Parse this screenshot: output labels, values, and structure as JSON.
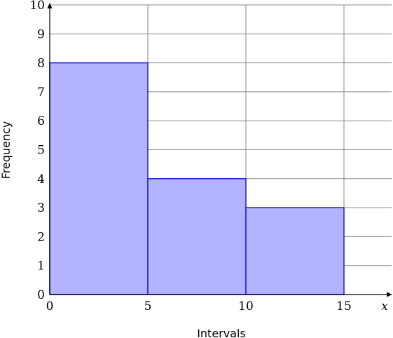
{
  "chart_data": {
    "type": "bar",
    "bins": [
      {
        "start": 0,
        "end": 5,
        "value": 8
      },
      {
        "start": 5,
        "end": 10,
        "value": 4
      },
      {
        "start": 10,
        "end": 15,
        "value": 3
      }
    ],
    "xlabel": "Intervals",
    "ylabel": "Frequency",
    "x_axis_var": "x",
    "xlim": [
      0,
      17.5
    ],
    "ylim": [
      0,
      10
    ],
    "x_ticks": [
      0,
      5,
      10,
      15
    ],
    "y_ticks": [
      0,
      1,
      2,
      3,
      4,
      5,
      6,
      7,
      8,
      9,
      10
    ],
    "grid": true,
    "colors": {
      "fill": "#b3b3ff",
      "stroke": "#2525e0",
      "grid": "#8a8a8a"
    }
  }
}
